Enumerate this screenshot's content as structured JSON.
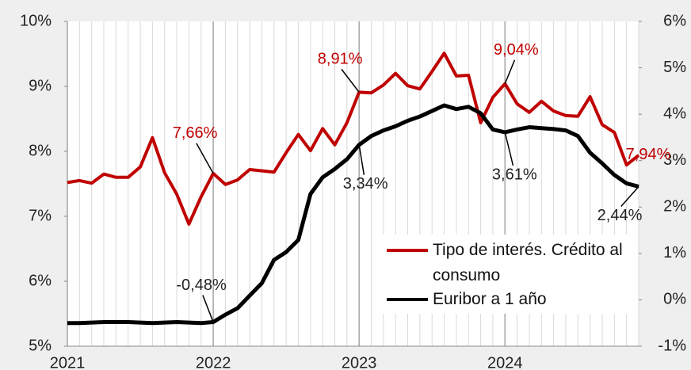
{
  "chart_data": {
    "type": "line",
    "categories": [
      "2021",
      null,
      null,
      null,
      null,
      null,
      null,
      null,
      null,
      null,
      null,
      null,
      "2022",
      null,
      null,
      null,
      null,
      null,
      null,
      null,
      null,
      null,
      null,
      null,
      "2023",
      null,
      null,
      null,
      null,
      null,
      null,
      null,
      null,
      null,
      null,
      null,
      "2024",
      null,
      null,
      null,
      null,
      null,
      null,
      null,
      null,
      null,
      null,
      null
    ],
    "series": [
      {
        "name": "Tipo de interés. Crédito al consumo",
        "color": "#c00000",
        "axis": "y",
        "values": [
          7.52,
          7.55,
          7.51,
          7.65,
          7.6,
          7.6,
          7.76,
          8.21,
          7.67,
          7.34,
          6.88,
          7.3,
          7.66,
          7.49,
          7.56,
          7.72,
          7.7,
          7.68,
          7.98,
          8.26,
          8.01,
          8.35,
          8.1,
          8.44,
          8.91,
          8.9,
          9.02,
          9.2,
          9.01,
          8.96,
          9.23,
          9.51,
          9.16,
          9.17,
          8.44,
          8.83,
          9.04,
          8.73,
          8.6,
          8.77,
          8.62,
          8.55,
          8.54,
          8.84,
          8.41,
          8.29,
          7.79,
          7.94
        ],
        "value_labels": [
          null,
          null,
          null,
          null,
          null,
          null,
          null,
          null,
          null,
          null,
          null,
          null,
          "7,66%",
          null,
          null,
          null,
          null,
          null,
          null,
          null,
          null,
          null,
          null,
          null,
          "8,91%",
          null,
          null,
          null,
          null,
          null,
          null,
          null,
          null,
          null,
          null,
          null,
          "9,04%",
          null,
          null,
          null,
          null,
          null,
          null,
          null,
          null,
          null,
          null,
          "7,94%"
        ]
      },
      {
        "name": "Euribor a 1 año",
        "color": "#000000",
        "axis": "y2",
        "values": [
          -0.5,
          -0.5,
          -0.49,
          -0.48,
          -0.48,
          -0.48,
          -0.49,
          -0.5,
          -0.49,
          -0.48,
          -0.49,
          -0.5,
          -0.48,
          -0.32,
          -0.18,
          0.09,
          0.36,
          0.86,
          1.03,
          1.29,
          2.28,
          2.64,
          2.82,
          3.03,
          3.34,
          3.53,
          3.65,
          3.74,
          3.86,
          3.95,
          4.07,
          4.19,
          4.11,
          4.16,
          4.02,
          3.67,
          3.61,
          3.67,
          3.72,
          3.7,
          3.68,
          3.65,
          3.53,
          3.17,
          2.94,
          2.69,
          2.51,
          2.44
        ],
        "value_labels": [
          null,
          null,
          null,
          null,
          null,
          null,
          null,
          null,
          null,
          null,
          null,
          null,
          "-0,48%",
          null,
          null,
          null,
          null,
          null,
          null,
          null,
          null,
          null,
          null,
          null,
          "3,34%",
          null,
          null,
          null,
          null,
          null,
          null,
          null,
          null,
          null,
          null,
          null,
          "3,61%",
          null,
          null,
          null,
          null,
          null,
          null,
          null,
          null,
          null,
          null,
          "2,44%"
        ]
      }
    ],
    "ylim": [
      5,
      10
    ],
    "yticks": [
      {
        "value": 5,
        "label": "5%"
      },
      {
        "value": 6,
        "label": "6%"
      },
      {
        "value": 7,
        "label": "7%"
      },
      {
        "value": 8,
        "label": "8%"
      },
      {
        "value": 9,
        "label": "9%"
      },
      {
        "value": 10,
        "label": "10%"
      }
    ],
    "y2lim": [
      -1,
      6
    ],
    "y2ticks": [
      {
        "value": -1,
        "label": "-1%"
      },
      {
        "value": 0,
        "label": "0%"
      },
      {
        "value": 1,
        "label": "1%"
      },
      {
        "value": 2,
        "label": "2%"
      },
      {
        "value": 3,
        "label": "3%"
      },
      {
        "value": 4,
        "label": "4%"
      },
      {
        "value": 5,
        "label": "5%"
      },
      {
        "value": 6,
        "label": "6%"
      }
    ],
    "grid": "x",
    "legend": "lower right"
  }
}
